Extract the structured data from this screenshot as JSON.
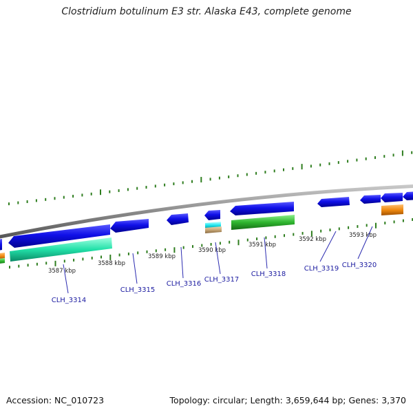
{
  "title": "Clostridium botulinum E3 str. Alaska E43, complete genome",
  "footer": {
    "accession_label": "Accession:",
    "accession": "NC_010723",
    "topology_label": "Topology:",
    "topology": "circular",
    "length_label": "Length:",
    "length": "3,659,644 bp",
    "genes_label": "Genes:",
    "genes": "3,370"
  },
  "colors": {
    "backbone": "#8a8a8a",
    "tick": "#2e7d1e",
    "gene_blue": "#1010e0",
    "gene_aqua": "#22ddaa",
    "gene_green": "#30b030",
    "gene_orange": "#f08a10",
    "gene_cyan": "#22e8f0",
    "gene_tan": "#c8a878",
    "label": "#1a1aa0"
  },
  "kbp_ticks": [
    "3587 kbp",
    "3588 kbp",
    "3589 kbp",
    "3590 kbp",
    "3591 kbp",
    "3592 kbp",
    "3593 kbp"
  ],
  "genes": [
    {
      "locus_tag": "CLH_3314"
    },
    {
      "locus_tag": "CLH_3315"
    },
    {
      "locus_tag": "CLH_3316"
    },
    {
      "locus_tag": "CLH_3317"
    },
    {
      "locus_tag": "CLH_3318"
    },
    {
      "locus_tag": "CLH_3319"
    },
    {
      "locus_tag": "CLH_3320"
    }
  ]
}
